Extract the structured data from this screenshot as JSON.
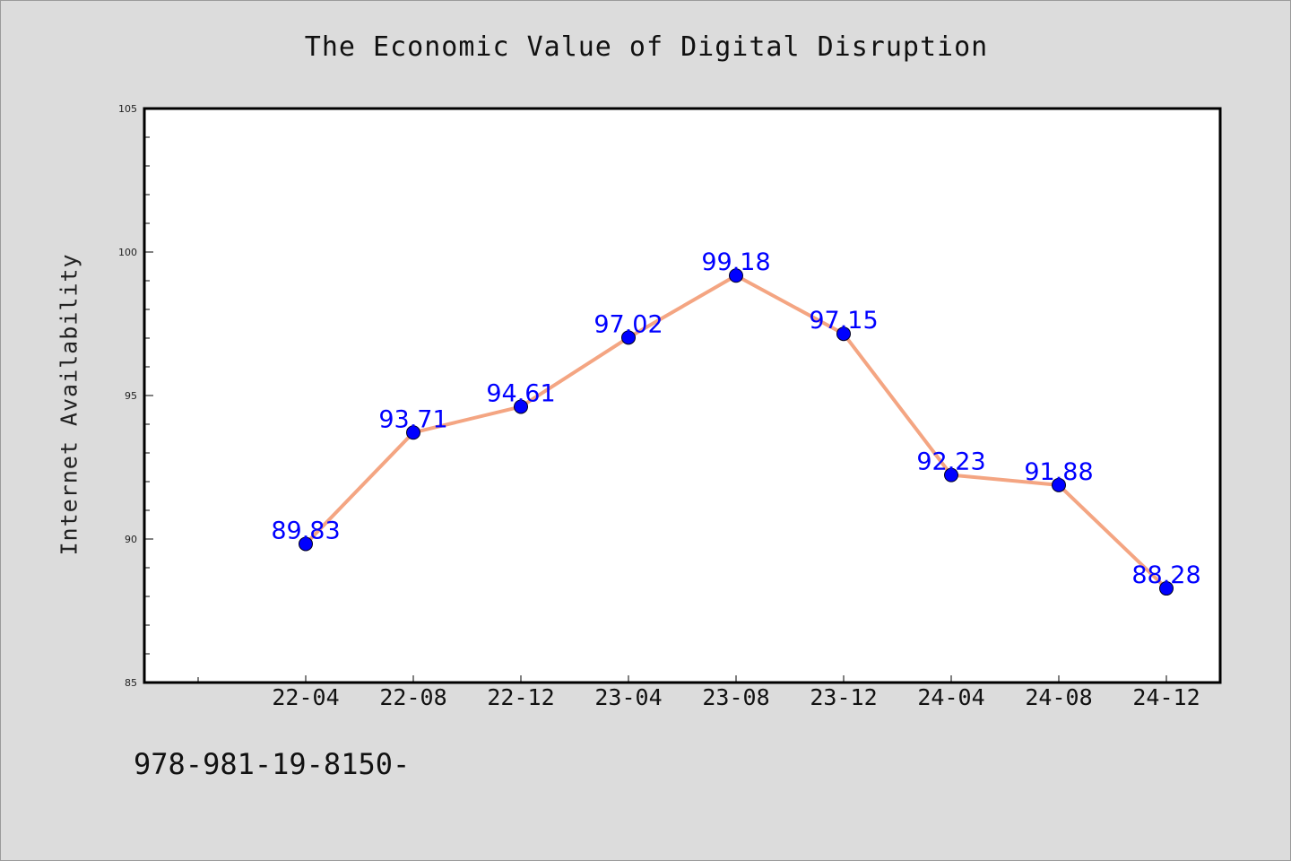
{
  "chart_data": {
    "type": "line",
    "title": "The Economic Value of Digital Disruption",
    "ylabel": "Internet Availability",
    "xlabel": "",
    "categories": [
      "22-04",
      "22-08",
      "22-12",
      "23-04",
      "23-08",
      "23-12",
      "24-04",
      "24-08",
      "24-12"
    ],
    "series": [
      {
        "values": [
          89.83,
          93.71,
          94.61,
          97.02,
          99.18,
          97.15,
          92.23,
          91.88,
          88.28
        ]
      }
    ],
    "ylim": [
      85,
      105
    ],
    "yticks": [
      85,
      90,
      95,
      100,
      105
    ],
    "grid": false,
    "line_color": "#f4a582",
    "marker_color": "#0000ff",
    "label_color": "#0000ff"
  },
  "footnote": "978-981-19-8150-"
}
